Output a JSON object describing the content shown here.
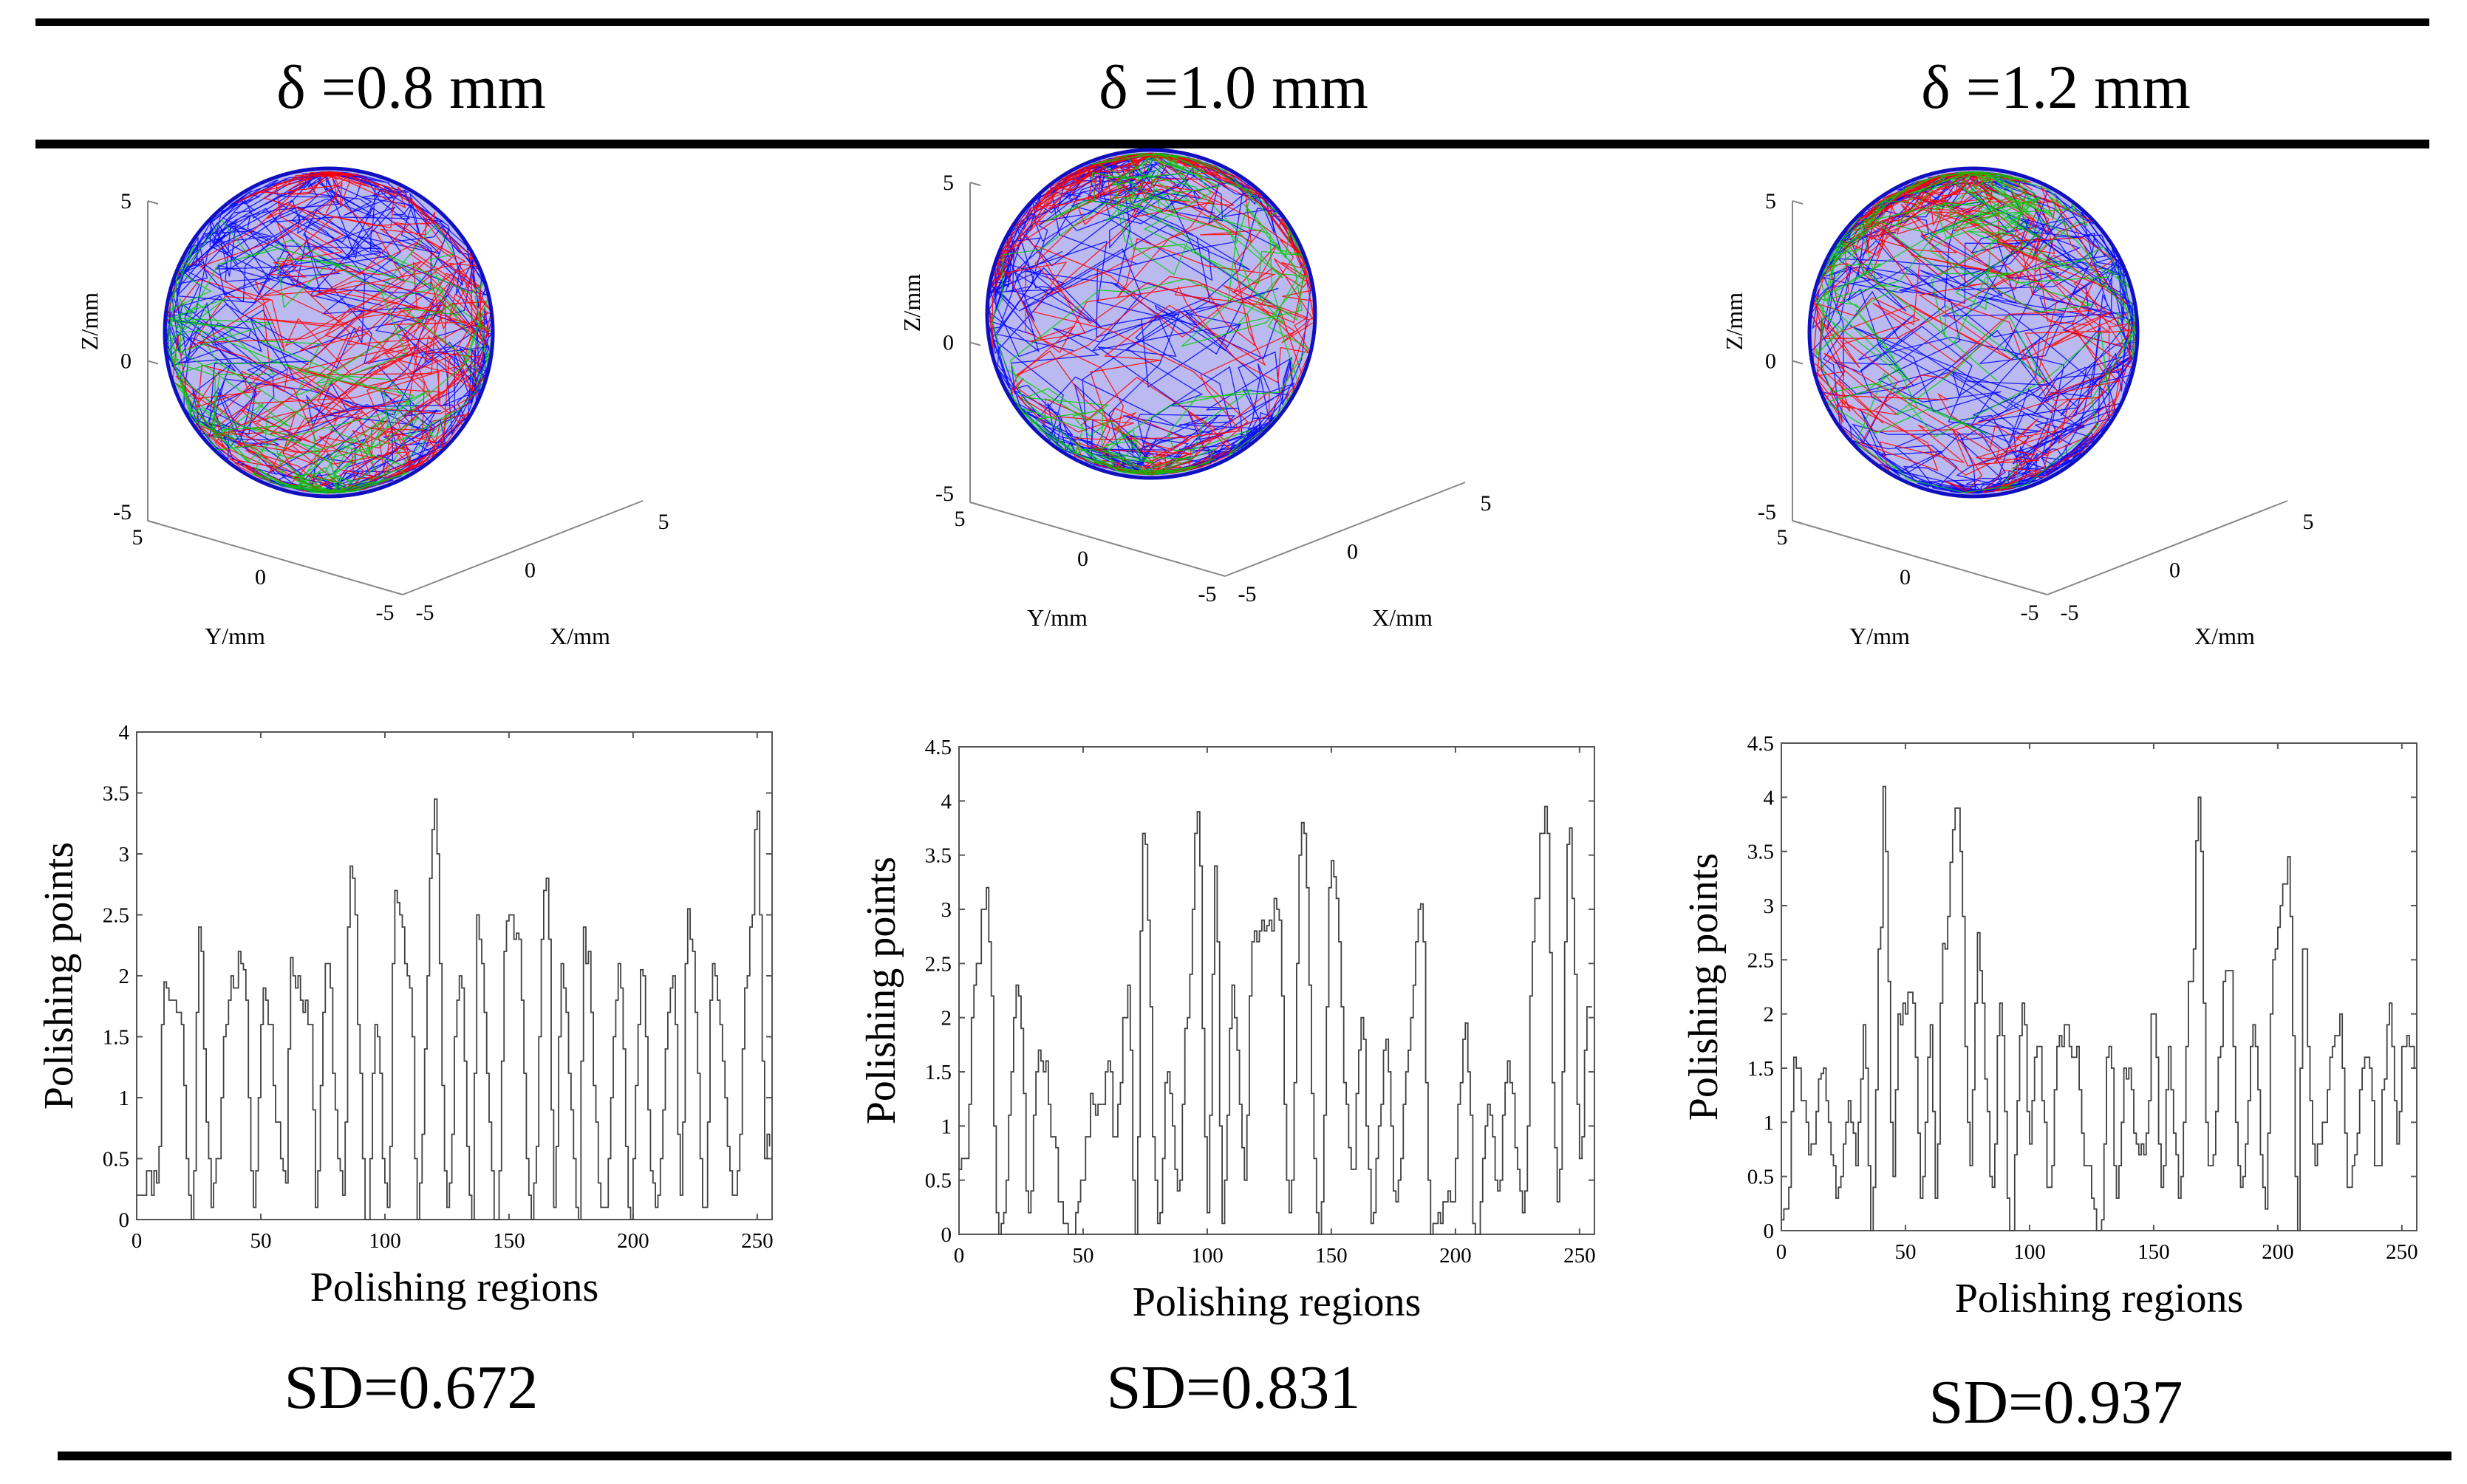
{
  "columns": [
    {
      "delta_label": "δ =0.8 mm",
      "sd_label": "SD=0.672",
      "sphere": {
        "z_axis_label": "Z/mm",
        "y_axis_label": "Y/mm",
        "x_axis_label": "X/mm",
        "z_ticks": [
          "5",
          "0",
          "-5"
        ],
        "y_ticks": [
          "5",
          "0",
          "-5"
        ],
        "x_ticks": [
          "-5",
          "0",
          "5"
        ]
      }
    },
    {
      "delta_label": "δ =1.0 mm",
      "sd_label": "SD=0.831",
      "sphere": {
        "z_axis_label": "Z/mm",
        "y_axis_label": "Y/mm",
        "x_axis_label": "X/mm",
        "z_ticks": [
          "5",
          "0",
          "-5"
        ],
        "y_ticks": [
          "5",
          "0",
          "-5"
        ],
        "x_ticks": [
          "-5",
          "0",
          "5"
        ]
      }
    },
    {
      "delta_label": "δ =1.2 mm",
      "sd_label": "SD=0.937",
      "sphere": {
        "z_axis_label": "Z/mm",
        "y_axis_label": "Y/mm",
        "x_axis_label": "X/mm",
        "z_ticks": [
          "5",
          "0",
          "-5"
        ],
        "y_ticks": [
          "5",
          "0",
          "-5"
        ],
        "x_ticks": [
          "-5",
          "0",
          "5"
        ]
      }
    }
  ],
  "colors": {
    "red": "#ff0000",
    "green": "#00cc00",
    "blue": "#0000ff",
    "ink": "#000000",
    "step_line": "#404040"
  },
  "chart_data": [
    {
      "type": "line",
      "style": "step",
      "title": "",
      "xlabel": "Polishing regions",
      "ylabel": "Polishing points",
      "xlim": [
        0,
        256
      ],
      "ylim": [
        0,
        4
      ],
      "xticks": [
        "0",
        "50",
        "100",
        "150",
        "200",
        "250"
      ],
      "yticks": [
        "0",
        "0.5",
        "1",
        "1.5",
        "2",
        "2.5",
        "3",
        "3.5",
        "4"
      ],
      "sd": 0.672,
      "seed": 11,
      "peaks": [
        [
          11,
          1.95
        ],
        [
          17,
          1.7
        ],
        [
          25,
          2.4
        ],
        [
          38,
          2.0
        ],
        [
          43,
          2.05
        ],
        [
          51,
          1.9
        ],
        [
          62,
          2.15
        ],
        [
          70,
          1.6
        ],
        [
          76,
          2.1
        ],
        [
          86,
          2.9
        ],
        [
          96,
          1.6
        ],
        [
          104,
          2.7
        ],
        [
          110,
          1.9
        ],
        [
          120,
          3.45
        ],
        [
          130,
          2.0
        ],
        [
          137,
          2.5
        ],
        [
          149,
          2.45
        ],
        [
          153,
          2.35
        ],
        [
          165,
          2.8
        ],
        [
          171,
          2.1
        ],
        [
          180,
          2.4
        ],
        [
          194,
          2.1
        ],
        [
          203,
          2.05
        ],
        [
          216,
          2.0
        ],
        [
          222,
          2.55
        ],
        [
          232,
          2.1
        ],
        [
          246,
          2.0
        ],
        [
          250,
          3.35
        ]
      ],
      "troughs": [
        [
          8,
          0.3
        ],
        [
          22,
          0.0
        ],
        [
          30,
          0.1
        ],
        [
          47,
          0.1
        ],
        [
          60,
          0.3
        ],
        [
          72,
          0.1
        ],
        [
          83,
          0.2
        ],
        [
          93,
          0.0
        ],
        [
          101,
          0.1
        ],
        [
          113,
          0.0
        ],
        [
          125,
          0.1
        ],
        [
          135,
          0.0
        ],
        [
          145,
          0.0
        ],
        [
          159,
          0.0
        ],
        [
          168,
          0.1
        ],
        [
          178,
          0.0
        ],
        [
          188,
          0.1
        ],
        [
          199,
          0.0
        ],
        [
          209,
          0.1
        ],
        [
          219,
          0.2
        ],
        [
          229,
          0.1
        ],
        [
          241,
          0.2
        ],
        [
          253,
          0.5
        ]
      ]
    },
    {
      "type": "line",
      "style": "step",
      "title": "",
      "xlabel": "Polishing regions",
      "ylabel": "Polishing points",
      "xlim": [
        0,
        256
      ],
      "ylim": [
        0,
        4.5
      ],
      "xticks": [
        "0",
        "50",
        "100",
        "150",
        "200",
        "250"
      ],
      "yticks": [
        "0",
        "0.5",
        "1",
        "1.5",
        "2",
        "2.5",
        "3",
        "3.5",
        "4",
        "4.5"
      ],
      "sd": 0.831,
      "seed": 23,
      "peaks": [
        [
          6,
          2.3
        ],
        [
          11,
          3.2
        ],
        [
          24,
          2.2
        ],
        [
          32,
          1.7
        ],
        [
          53,
          1.3
        ],
        [
          56,
          1.2
        ],
        [
          60,
          1.6
        ],
        [
          68,
          2.3
        ],
        [
          74,
          3.7
        ],
        [
          84,
          1.5
        ],
        [
          92,
          2.0
        ],
        [
          96,
          3.9
        ],
        [
          103,
          3.4
        ],
        [
          110,
          2.3
        ],
        [
          118,
          2.7
        ],
        [
          124,
          2.85
        ],
        [
          128,
          3.0
        ],
        [
          138,
          3.8
        ],
        [
          150,
          3.45
        ],
        [
          162,
          2.0
        ],
        [
          172,
          1.8
        ],
        [
          182,
          2.0
        ],
        [
          186,
          3.05
        ],
        [
          204,
          1.95
        ],
        [
          213,
          1.2
        ],
        [
          221,
          1.6
        ],
        [
          232,
          3.1
        ],
        [
          236,
          3.95
        ],
        [
          246,
          3.75
        ],
        [
          253,
          2.1
        ]
      ],
      "troughs": [
        [
          3,
          0.7
        ],
        [
          16,
          0.0
        ],
        [
          28,
          0.2
        ],
        [
          44,
          0.0
        ],
        [
          50,
          0.5
        ],
        [
          63,
          0.9
        ],
        [
          71,
          0.0
        ],
        [
          80,
          0.1
        ],
        [
          88,
          0.4
        ],
        [
          100,
          0.2
        ],
        [
          106,
          0.1
        ],
        [
          115,
          0.5
        ],
        [
          133,
          0.2
        ],
        [
          145,
          0.0
        ],
        [
          158,
          0.6
        ],
        [
          166,
          0.1
        ],
        [
          176,
          0.3
        ],
        [
          190,
          0.0
        ],
        [
          198,
          0.3
        ],
        [
          208,
          0.0
        ],
        [
          217,
          0.4
        ],
        [
          227,
          0.2
        ],
        [
          241,
          0.3
        ],
        [
          250,
          0.7
        ]
      ]
    },
    {
      "type": "line",
      "style": "step",
      "title": "",
      "xlabel": "Polishing regions",
      "ylabel": "Polishing points",
      "xlim": [
        0,
        256
      ],
      "ylim": [
        0,
        4.5
      ],
      "xticks": [
        "0",
        "50",
        "100",
        "150",
        "200",
        "250"
      ],
      "yticks": [
        "0",
        "0.5",
        "1",
        "1.5",
        "2",
        "2.5",
        "3",
        "3.5",
        "4",
        "4.5"
      ],
      "sd": 0.937,
      "seed": 37,
      "peaks": [
        [
          5,
          1.6
        ],
        [
          16,
          1.45
        ],
        [
          27,
          1.2
        ],
        [
          33,
          1.9
        ],
        [
          40,
          2.8
        ],
        [
          41,
          4.1
        ],
        [
          47,
          2.0
        ],
        [
          53,
          2.1
        ],
        [
          60,
          1.9
        ],
        [
          65,
          2.65
        ],
        [
          71,
          3.9
        ],
        [
          79,
          2.75
        ],
        [
          88,
          2.1
        ],
        [
          97,
          2.1
        ],
        [
          103,
          1.7
        ],
        [
          112,
          1.8
        ],
        [
          118,
          1.6
        ],
        [
          132,
          1.7
        ],
        [
          138,
          1.5
        ],
        [
          150,
          2.0
        ],
        [
          156,
          1.7
        ],
        [
          165,
          2.3
        ],
        [
          168,
          4.0
        ],
        [
          180,
          2.4
        ],
        [
          190,
          1.9
        ],
        [
          198,
          2.5
        ],
        [
          204,
          3.45
        ],
        [
          210,
          2.6
        ],
        [
          225,
          2.0
        ],
        [
          236,
          1.6
        ],
        [
          245,
          2.1
        ],
        [
          250,
          1.7
        ]
      ],
      "troughs": [
        [
          2,
          0.2
        ],
        [
          12,
          0.8
        ],
        [
          23,
          0.4
        ],
        [
          30,
          0.6
        ],
        [
          36,
          0.0
        ],
        [
          45,
          0.5
        ],
        [
          56,
          0.3
        ],
        [
          62,
          0.3
        ],
        [
          76,
          0.6
        ],
        [
          85,
          0.4
        ],
        [
          92,
          0.0
        ],
        [
          100,
          0.8
        ],
        [
          108,
          0.4
        ],
        [
          123,
          0.6
        ],
        [
          128,
          0.0
        ],
        [
          135,
          0.3
        ],
        [
          146,
          0.7
        ],
        [
          153,
          0.4
        ],
        [
          160,
          0.3
        ],
        [
          172,
          0.6
        ],
        [
          185,
          0.4
        ],
        [
          195,
          0.2
        ],
        [
          208,
          0.0
        ],
        [
          215,
          0.6
        ],
        [
          228,
          0.4
        ],
        [
          240,
          0.6
        ],
        [
          248,
          0.8
        ]
      ]
    }
  ]
}
